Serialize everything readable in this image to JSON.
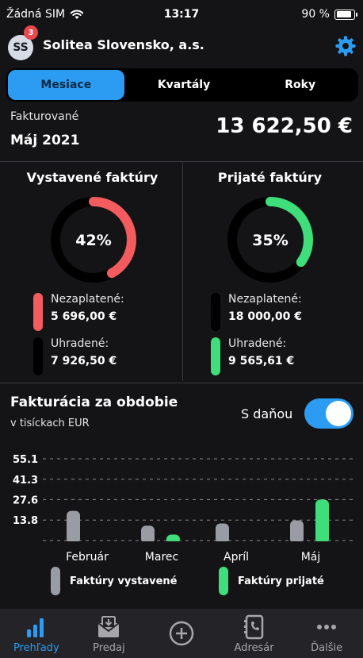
{
  "status_bar": {
    "carrier": "Žádná SIM",
    "time": "13:17",
    "battery": "90 %",
    "battery_level": 0.9
  },
  "header": {
    "avatar_initials": "SS",
    "notification_count": "3",
    "company": "Solitea Slovensko, a.s."
  },
  "segmented": {
    "tabs": [
      "Mesiace",
      "Kvartály",
      "Roky"
    ],
    "active": 0
  },
  "summary": {
    "label": "Fakturované",
    "period": "Máj 2021",
    "amount": "13 622,50 €"
  },
  "issued": {
    "title": "Vystavené faktúry",
    "percent": "42%",
    "fraction": 0.42,
    "unpaid_label": "Nezaplatené:",
    "unpaid_value": "5 696,00 €",
    "paid_label": "Uhradené:",
    "paid_value": "7 926,50 €"
  },
  "received": {
    "title": "Prijaté faktúry",
    "percent": "35%",
    "fraction": 0.35,
    "unpaid_label": "Nezaplatené:",
    "unpaid_value": "18 000,00 €",
    "paid_label": "Uhradené:",
    "paid_value": "9 565,61 €"
  },
  "period": {
    "title": "Fakturácia za obdobie",
    "subtitle": "v tisíckach EUR",
    "toggle_label": "S daňou",
    "toggle_on": true
  },
  "chart_data": {
    "type": "bar",
    "categories": [
      "Február",
      "Marec",
      "Apríl",
      "Máj"
    ],
    "y_ticks": [
      "55.1",
      "41.3",
      "27.6",
      "13.8"
    ],
    "y_tick_values": [
      55.1,
      41.3,
      27.6,
      13.8
    ],
    "ylim": [
      0,
      55.1
    ],
    "grid": true,
    "legend_position": "bottom",
    "series": [
      {
        "name": "Faktúry vystavené",
        "values": [
          20.0,
          10.0,
          11.5,
          13.6
        ]
      },
      {
        "name": "Faktúry prijaté",
        "values": [
          0,
          4.0,
          0,
          27.6
        ]
      }
    ]
  },
  "colors": {
    "accent": "#2c9cf2",
    "red": "#f25c5f",
    "green": "#3fde7a",
    "gray_bar": "#9a9ca4",
    "background": "#141416",
    "tabbar": "#242428"
  },
  "tabbar": {
    "items": [
      {
        "label": "Prehľady",
        "icon": "bar-chart-icon"
      },
      {
        "label": "Predaj",
        "icon": "invoice-icon"
      },
      {
        "label": "",
        "icon": "add-circle-icon"
      },
      {
        "label": "Adresár",
        "icon": "contacts-icon"
      },
      {
        "label": "Ďalšie",
        "icon": "more-icon"
      }
    ],
    "active": 0
  }
}
